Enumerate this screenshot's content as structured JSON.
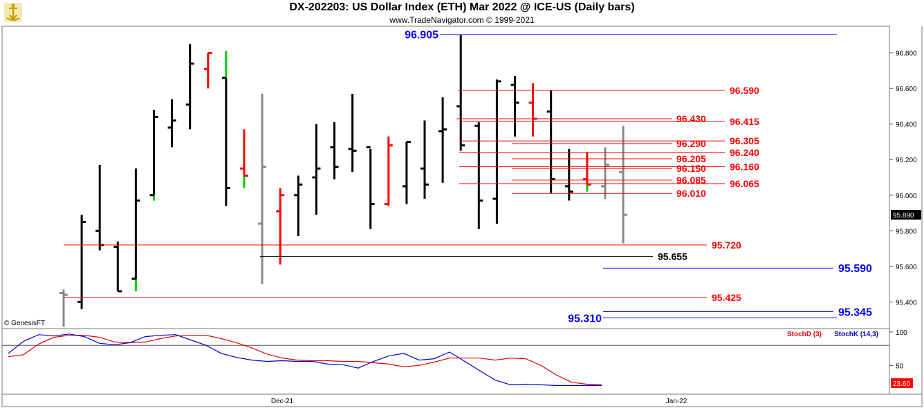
{
  "header": {
    "title": "DX-202203:  US Dollar Index (ETH) Mar 2022 @ ICE-US  (Daily bars)",
    "subtitle": "www.TradeNavigator.com © 1999-2021",
    "watermark": "© GenesisFT"
  },
  "colors": {
    "up_bar": "#000000",
    "down_bar": "#ff0000",
    "unfinished_bar": "#888888",
    "close_highlight": "#00cc00",
    "level_red": "#ff0000",
    "level_blue": "#0000ff",
    "level_black": "#000000",
    "stoch_d": "#e00000",
    "stoch_k": "#0000cc"
  },
  "chart_data": [
    {
      "type": "ohlc",
      "title": "DX-202203:  US Dollar Index (ETH) Mar 2022 @ ICE-US  (Daily bars)",
      "x_labels": [
        "Dec-21",
        "Jan-22"
      ],
      "y_ticks": [
        "96.800",
        "96.600",
        "96.400",
        "96.200",
        "96.000",
        "95.800",
        "95.600",
        "95.400"
      ],
      "ylim": [
        95.25,
        96.95
      ],
      "last_price": "95.890",
      "grid": false,
      "bars": [
        {
          "o": 95.45,
          "h": 95.47,
          "l": 95.26,
          "c": 95.44,
          "col": "gray"
        },
        {
          "o": 95.4,
          "h": 95.89,
          "l": 95.36,
          "c": 95.85,
          "col": "black"
        },
        {
          "o": 95.8,
          "h": 96.17,
          "l": 95.69,
          "c": 95.72,
          "col": "black"
        },
        {
          "o": 95.71,
          "h": 95.74,
          "l": 95.46,
          "c": 95.46,
          "col": "black"
        },
        {
          "o": 95.53,
          "h": 96.15,
          "l": 95.46,
          "c": 95.97,
          "col": "black",
          "green": "low"
        },
        {
          "o": 96.0,
          "h": 96.48,
          "l": 95.97,
          "c": 96.44,
          "col": "black",
          "green": "low"
        },
        {
          "o": 96.38,
          "h": 96.54,
          "l": 96.27,
          "c": 96.42,
          "col": "black"
        },
        {
          "o": 96.51,
          "h": 96.85,
          "l": 96.37,
          "c": 96.74,
          "col": "black"
        },
        {
          "o": 96.71,
          "h": 96.8,
          "l": 96.6,
          "c": 96.8,
          "col": "red"
        },
        {
          "o": 96.66,
          "h": 96.81,
          "l": 95.94,
          "c": 96.04,
          "col": "black",
          "green": "high"
        },
        {
          "o": 96.15,
          "h": 96.37,
          "l": 96.04,
          "c": 96.11,
          "col": "red",
          "green": "low"
        },
        {
          "o": 95.84,
          "h": 96.57,
          "l": 95.5,
          "c": 96.16,
          "col": "gray"
        },
        {
          "o": 95.91,
          "h": 96.04,
          "l": 95.61,
          "c": 96.0,
          "col": "red"
        },
        {
          "o": 96.0,
          "h": 96.11,
          "l": 95.77,
          "c": 96.06,
          "col": "black"
        },
        {
          "o": 96.1,
          "h": 96.4,
          "l": 95.89,
          "c": 96.15,
          "col": "black"
        },
        {
          "o": 96.27,
          "h": 96.41,
          "l": 96.09,
          "c": 96.16,
          "col": "black"
        },
        {
          "o": 96.26,
          "h": 96.57,
          "l": 96.13,
          "c": 96.25,
          "col": "black"
        },
        {
          "o": 96.27,
          "h": 96.26,
          "l": 95.81,
          "c": 95.95,
          "col": "black"
        },
        {
          "o": 95.95,
          "h": 96.33,
          "l": 95.94,
          "c": 96.28,
          "col": "red"
        },
        {
          "o": 96.05,
          "h": 96.3,
          "l": 95.95,
          "c": 96.3,
          "col": "black"
        },
        {
          "o": 96.15,
          "h": 96.42,
          "l": 95.98,
          "c": 96.06,
          "col": "black"
        },
        {
          "o": 96.36,
          "h": 96.55,
          "l": 96.07,
          "c": 96.37,
          "col": "black"
        },
        {
          "o": 96.5,
          "h": 96.9,
          "l": 96.25,
          "c": 96.28,
          "col": "black"
        },
        {
          "o": 96.39,
          "h": 96.41,
          "l": 95.81,
          "c": 95.97,
          "col": "black"
        },
        {
          "o": 95.98,
          "h": 96.65,
          "l": 95.84,
          "c": 96.64,
          "col": "black"
        },
        {
          "o": 96.62,
          "h": 96.67,
          "l": 96.33,
          "c": 96.52,
          "col": "black"
        },
        {
          "o": 96.52,
          "h": 96.63,
          "l": 96.33,
          "c": 96.43,
          "col": "red"
        },
        {
          "o": 96.47,
          "h": 96.59,
          "l": 96.01,
          "c": 96.09,
          "col": "black"
        },
        {
          "o": 96.05,
          "h": 96.26,
          "l": 95.97,
          "c": 96.02,
          "col": "black"
        },
        {
          "o": 96.09,
          "h": 96.24,
          "l": 96.02,
          "c": 96.06,
          "col": "red",
          "green": "low"
        },
        {
          "o": 96.05,
          "h": 96.27,
          "l": 95.98,
          "c": 96.17,
          "col": "gray"
        },
        {
          "o": 96.13,
          "h": 96.39,
          "l": 95.73,
          "c": 95.89,
          "col": "gray"
        }
      ],
      "levels": [
        {
          "price": "96.905",
          "color": "blue",
          "big": true,
          "side": "left"
        },
        {
          "price": "96.590",
          "color": "red"
        },
        {
          "price": "96.430",
          "color": "red"
        },
        {
          "price": "96.415",
          "color": "red"
        },
        {
          "price": "96.305",
          "color": "red"
        },
        {
          "price": "96.290",
          "color": "red"
        },
        {
          "price": "96.240",
          "color": "red"
        },
        {
          "price": "96.205",
          "color": "red"
        },
        {
          "price": "96.160",
          "color": "red"
        },
        {
          "price": "96.150",
          "color": "red"
        },
        {
          "price": "96.085",
          "color": "red"
        },
        {
          "price": "96.065",
          "color": "red"
        },
        {
          "price": "96.010",
          "color": "red"
        },
        {
          "price": "95.720",
          "color": "red"
        },
        {
          "price": "95.655",
          "color": "black"
        },
        {
          "price": "95.590",
          "color": "blue",
          "big": true
        },
        {
          "price": "95.425",
          "color": "red"
        },
        {
          "price": "95.345",
          "color": "blue",
          "big": true
        },
        {
          "price": "95.310",
          "color": "blue",
          "big": true,
          "side": "left"
        }
      ]
    },
    {
      "type": "line",
      "series": [
        {
          "name": "StochD (3)",
          "values": [
            63,
            66,
            82,
            92,
            95,
            95,
            92,
            85,
            84,
            85,
            90,
            94,
            95,
            95,
            90,
            84,
            76,
            67,
            61,
            58,
            57,
            57,
            56,
            56,
            54,
            52,
            48,
            50,
            55,
            61,
            61,
            61,
            58,
            61,
            60,
            50,
            36,
            25,
            22,
            21
          ]
        },
        {
          "name": "StochK (14,3)",
          "values": [
            68,
            86,
            96,
            94,
            97,
            93,
            83,
            81,
            84,
            93,
            95,
            96,
            88,
            80,
            68,
            62,
            58,
            56,
            57,
            56,
            56,
            52,
            51,
            46,
            56,
            64,
            68,
            58,
            60,
            70,
            56,
            42,
            28,
            21,
            22,
            21,
            20,
            20,
            20,
            20
          ]
        }
      ],
      "y_ticks": [
        "100",
        "50"
      ],
      "ylim": [
        7,
        105
      ],
      "reference_line": 80,
      "last_value": "23.60"
    }
  ]
}
